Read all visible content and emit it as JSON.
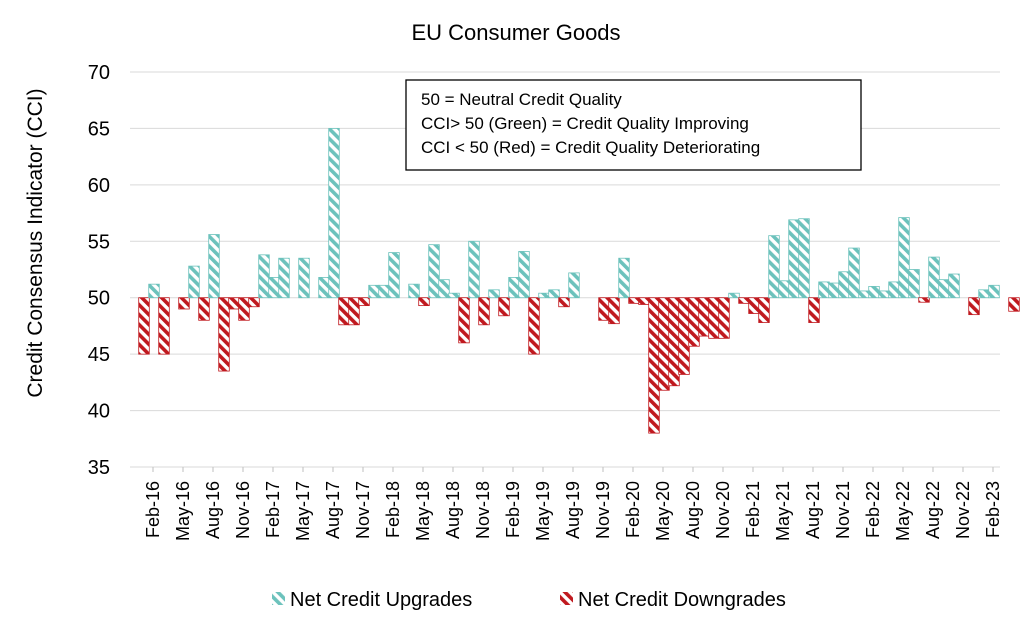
{
  "chart_data": {
    "type": "bar",
    "title": "EU Consumer Goods",
    "xlabel": "",
    "ylabel": "Credit Consensus Indicator (CCI)",
    "ylim": [
      35,
      70
    ],
    "yticks": [
      35,
      40,
      45,
      50,
      55,
      60,
      65,
      70
    ],
    "baseline": 50,
    "grid": true,
    "start_month": "Feb-16",
    "tick_labels": [
      "Feb-16",
      "May-16",
      "Aug-16",
      "Nov-16",
      "Feb-17",
      "May-17",
      "Aug-17",
      "Nov-17",
      "Feb-18",
      "May-18",
      "Aug-18",
      "Nov-18",
      "Feb-19",
      "May-19",
      "Aug-19",
      "Nov-19",
      "Feb-20",
      "May-20",
      "Aug-20",
      "Nov-20",
      "Feb-21",
      "May-21",
      "Aug-21",
      "Nov-21",
      "Feb-22",
      "May-22",
      "Aug-22",
      "Nov-22",
      "Feb-23"
    ],
    "values": [
      45.0,
      51.2,
      45.0,
      null,
      49.0,
      52.8,
      48.0,
      55.6,
      43.5,
      49.0,
      48.0,
      49.2,
      53.8,
      51.8,
      53.5,
      null,
      53.5,
      null,
      51.8,
      65.0,
      47.6,
      47.6,
      49.3,
      51.1,
      51.1,
      54.0,
      null,
      51.2,
      49.3,
      54.7,
      51.6,
      50.4,
      46.0,
      55.0,
      47.6,
      50.7,
      48.4,
      51.8,
      54.1,
      45.0,
      50.4,
      50.7,
      49.2,
      52.2,
      null,
      null,
      48.0,
      47.7,
      53.5,
      49.5,
      49.4,
      38.0,
      41.8,
      42.2,
      43.2,
      45.7,
      46.6,
      46.4,
      46.4,
      50.4,
      49.5,
      48.6,
      47.8,
      55.5,
      51.5,
      56.9,
      57.0,
      47.8,
      51.4,
      51.3,
      52.3,
      54.4,
      50.6,
      51.0,
      50.6,
      51.4,
      57.1,
      52.5,
      49.6,
      53.6,
      51.6,
      52.1,
      null,
      48.5,
      50.7,
      51.1,
      null,
      48.8
    ],
    "legend": [
      "Net Credit Upgrades",
      "Net Credit Downgrades"
    ],
    "legend_position": "bottom",
    "annotation": [
      "50 = Neutral Credit Quality",
      "CCI> 50 (Green) = Credit Quality Improving",
      "CCI < 50 (Red) = Credit Quality Deteriorating"
    ],
    "colors": {
      "up": "#6cc2bc",
      "down": "#c0191f",
      "grid": "#d9d9d9"
    }
  }
}
